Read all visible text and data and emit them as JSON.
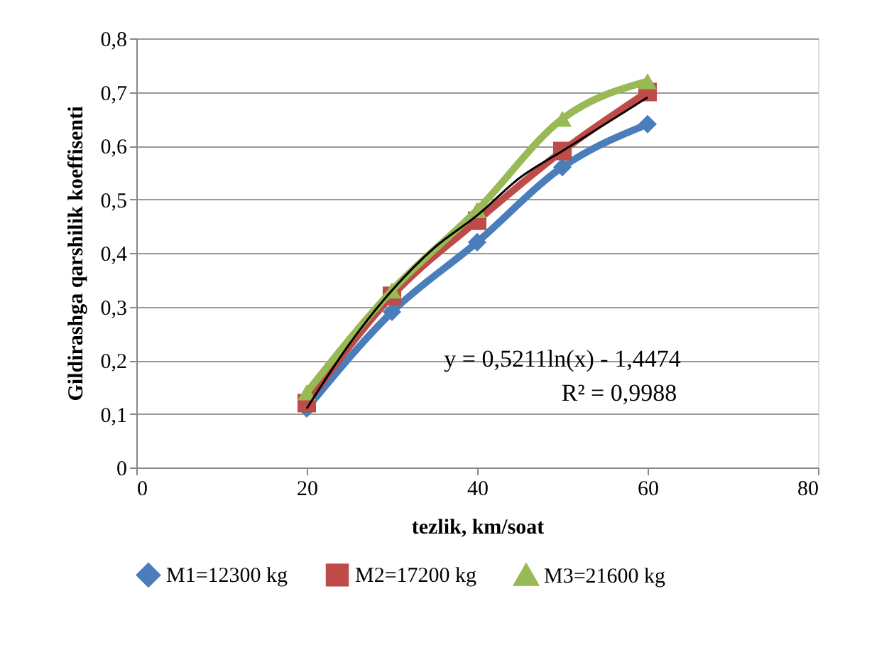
{
  "chart_data": {
    "type": "line",
    "xlabel": "tezlik,     km/soat",
    "ylabel": "Gildirashga qarshilik koeffisenti",
    "x": [
      20,
      30,
      40,
      50,
      60
    ],
    "series": [
      {
        "name": "M1=12300 kg",
        "color": "#4a7ebb",
        "marker": "diamond",
        "values": [
          0.11,
          0.29,
          0.42,
          0.56,
          0.64
        ]
      },
      {
        "name": "M2=17200 kg",
        "color": "#be4b48",
        "marker": "square",
        "values": [
          0.12,
          0.32,
          0.46,
          0.59,
          0.7
        ]
      },
      {
        "name": "M3=21600 kg",
        "color": "#98b954",
        "marker": "triangle",
        "values": [
          0.14,
          0.33,
          0.48,
          0.65,
          0.72
        ]
      },
      {
        "type": "line",
        "color": "#000000",
        "marker": "none",
        "x": [
          20,
          25,
          30,
          35,
          40,
          45,
          50,
          55,
          60
        ],
        "values": [
          0.11,
          0.23,
          0.33,
          0.41,
          0.47,
          0.54,
          0.59,
          0.64,
          0.69
        ]
      }
    ],
    "annotations": [
      "y = 0,5211ln(x) - 1,4474",
      "R² = 0,9988"
    ],
    "xlim": [
      0,
      80
    ],
    "xticks": [
      0,
      20,
      40,
      60,
      80
    ],
    "ylim": [
      0,
      0.8
    ],
    "yticks": [
      0,
      {
        "value": 0.1,
        "label": "0,1"
      },
      {
        "value": 0.2,
        "label": "0,2"
      },
      {
        "value": 0.3,
        "label": "0,3"
      },
      {
        "value": 0.4,
        "label": "0,4"
      },
      {
        "value": 0.5,
        "label": "0,5"
      },
      {
        "value": 0.6,
        "label": "0,6"
      },
      {
        "value": 0.7,
        "label": "0,7"
      },
      {
        "value": 0.8,
        "label": "0,8"
      }
    ],
    "grid": "y",
    "legend": "bottom",
    "line_style": "solid"
  }
}
